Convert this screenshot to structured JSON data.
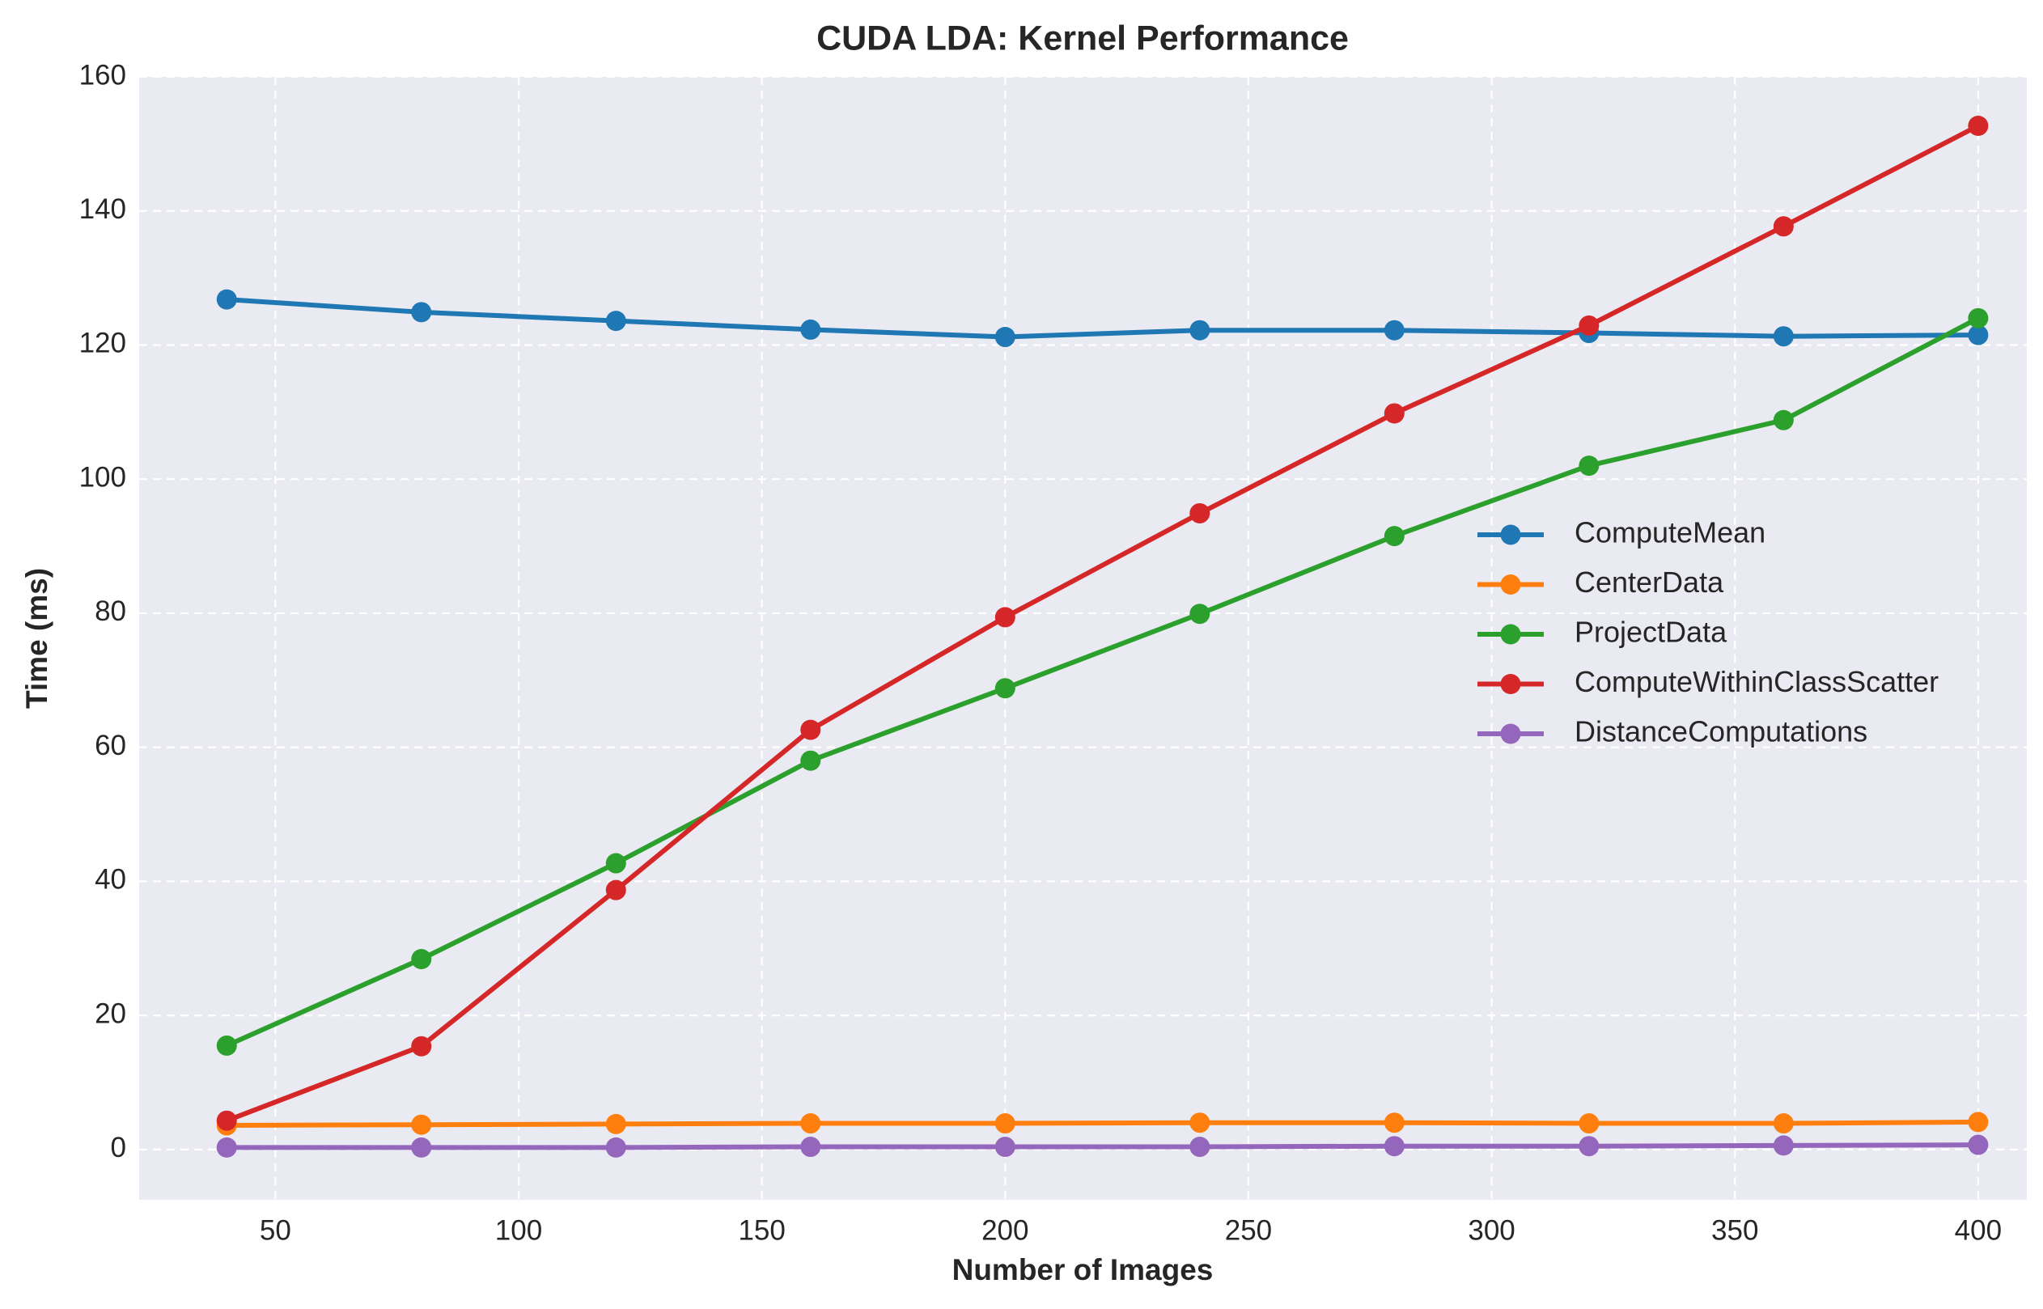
{
  "chart_data": {
    "type": "line",
    "title": "CUDA LDA: Kernel Performance",
    "xlabel": "Number of Images",
    "ylabel": "Time (ms)",
    "x": [
      40,
      80,
      120,
      160,
      200,
      240,
      280,
      320,
      360,
      400
    ],
    "xlim": [
      22,
      410
    ],
    "ylim": [
      -7.5,
      160
    ],
    "xticks": [
      50,
      100,
      150,
      200,
      250,
      300,
      350,
      400
    ],
    "yticks": [
      0,
      20,
      40,
      60,
      80,
      100,
      120,
      140,
      160
    ],
    "grid": true,
    "grid_style": "dashed",
    "background_color": "#eaeaf2",
    "legend_position": "center-right",
    "series": [
      {
        "name": "ComputeMean",
        "color": "#1f77b4",
        "values": [
          126.8,
          124.9,
          123.6,
          122.3,
          121.2,
          122.2,
          122.2,
          121.8,
          121.3,
          121.5
        ]
      },
      {
        "name": "CenterData",
        "color": "#ff7f0e",
        "values": [
          3.6,
          3.7,
          3.8,
          3.9,
          3.9,
          4.0,
          4.0,
          3.9,
          3.9,
          4.1
        ]
      },
      {
        "name": "ProjectData",
        "color": "#2ca02c",
        "values": [
          15.5,
          28.4,
          42.7,
          58.0,
          68.8,
          79.9,
          91.5,
          102.0,
          108.8,
          124.0
        ]
      },
      {
        "name": "ComputeWithinClassScatter",
        "color": "#d62728",
        "values": [
          4.3,
          15.4,
          38.7,
          62.6,
          79.4,
          94.9,
          109.8,
          122.9,
          137.7,
          152.7
        ]
      },
      {
        "name": "DistanceComputations",
        "color": "#9467bd",
        "values": [
          0.3,
          0.3,
          0.3,
          0.4,
          0.4,
          0.4,
          0.5,
          0.5,
          0.6,
          0.7
        ]
      }
    ]
  }
}
